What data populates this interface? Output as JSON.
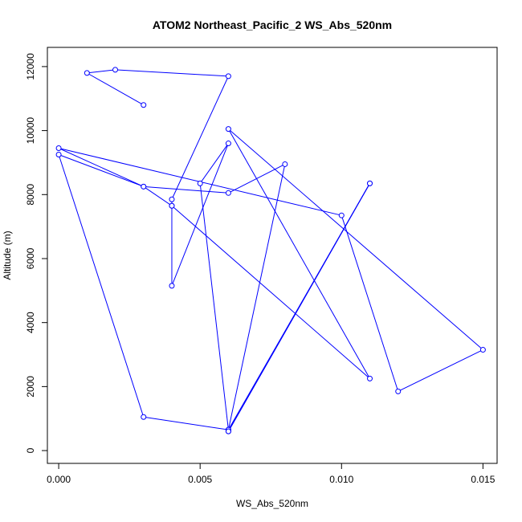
{
  "chart_data": {
    "type": "line",
    "title": "ATOM2 Northeast_Pacific_2 WS_Abs_520nm",
    "xlabel": "WS_Abs_520nm",
    "ylabel": "Altitude (m)",
    "xlim": [
      -0.0004,
      0.0155
    ],
    "ylim": [
      -400,
      12600
    ],
    "x_ticks": [
      0.0,
      0.005,
      0.01,
      0.015
    ],
    "x_tick_labels": [
      "0.000",
      "0.005",
      "0.010",
      "0.015"
    ],
    "y_ticks": [
      0,
      2000,
      4000,
      6000,
      8000,
      10000,
      12000
    ],
    "y_tick_labels": [
      "0",
      "2000",
      "4000",
      "6000",
      "8000",
      "10000",
      "12000"
    ],
    "series_color": "#0000ff",
    "marker": "open-circle",
    "grid": false,
    "legend": "none",
    "series": [
      {
        "points": [
          [
            0.003,
            10800
          ],
          [
            0.001,
            11800
          ],
          [
            0.002,
            11900
          ],
          [
            0.006,
            11700
          ],
          [
            0.004,
            7850
          ],
          [
            0.004,
            5150
          ],
          [
            0.006,
            9600
          ],
          [
            0.005,
            8350
          ],
          [
            0.006,
            650
          ],
          [
            0.008,
            8950
          ],
          [
            0.006,
            8050
          ],
          [
            0.003,
            8250
          ],
          [
            0.0,
            9450
          ],
          [
            0.01,
            7350
          ],
          [
            0.012,
            1850
          ],
          [
            0.015,
            3150
          ],
          [
            0.006,
            10050
          ],
          [
            0.011,
            2250
          ],
          [
            0.004,
            7650
          ],
          [
            0.004,
            7650
          ],
          [
            0.003,
            8250
          ],
          [
            0.0,
            9250
          ],
          [
            0.003,
            1050
          ],
          [
            0.006,
            650
          ],
          [
            0.011,
            8350
          ],
          [
            0.006,
            600
          ],
          [
            0.011,
            8350
          ],
          [
            0.006,
            600
          ]
        ]
      }
    ]
  }
}
